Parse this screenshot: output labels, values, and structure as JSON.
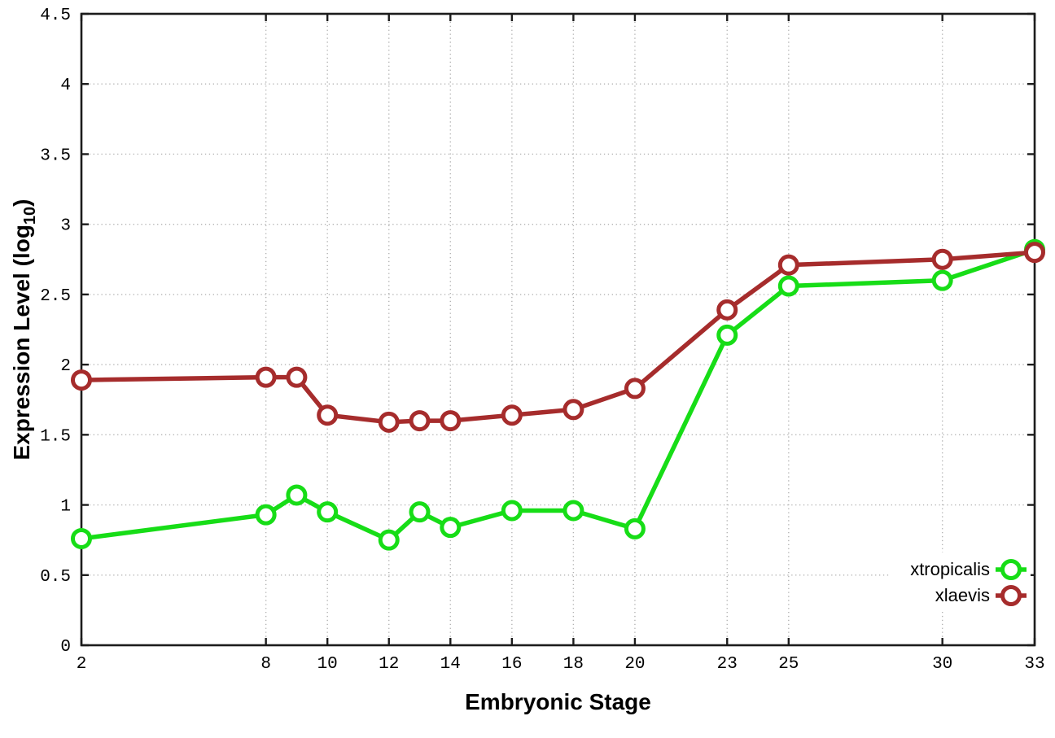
{
  "chart_data": {
    "type": "line",
    "title": "",
    "xlabel": "Embryonic Stage",
    "ylabel": "Expression Level (log10)",
    "ylabel_main": "Expression Level (log",
    "ylabel_sub": "10",
    "ylabel_end": ")",
    "x": [
      2,
      8,
      9,
      10,
      12,
      13,
      14,
      16,
      18,
      20,
      23,
      25,
      30,
      33
    ],
    "series": [
      {
        "name": "xtropicalis",
        "color": "#17dd17",
        "marker": "open-circle",
        "values": [
          0.76,
          0.93,
          1.07,
          0.95,
          0.75,
          0.95,
          0.84,
          0.96,
          0.96,
          0.83,
          2.21,
          2.56,
          2.6,
          2.82
        ]
      },
      {
        "name": "xlaevis",
        "color": "#a62c2c",
        "marker": "open-circle",
        "values": [
          1.89,
          1.91,
          1.91,
          1.64,
          1.59,
          1.6,
          1.6,
          1.64,
          1.68,
          1.83,
          2.39,
          2.71,
          2.75,
          2.8
        ]
      }
    ],
    "xlim": [
      2,
      33
    ],
    "ylim": [
      0,
      4.5
    ],
    "xticks": [
      2,
      8,
      10,
      12,
      14,
      16,
      18,
      20,
      23,
      25,
      30,
      33
    ],
    "xtick_labels": [
      "2",
      "8",
      "10",
      "12",
      "14",
      "16",
      "18",
      "20",
      "23",
      "25",
      "30",
      "33"
    ],
    "yticks": [
      0,
      0.5,
      1,
      1.5,
      2,
      2.5,
      3,
      3.5,
      4,
      4.5
    ],
    "ytick_labels": [
      "0",
      "0.5",
      "1",
      "1.5",
      "2",
      "2.5",
      "3",
      "3.5",
      "4",
      "4.5"
    ],
    "grid": true,
    "legend_position": "inside-bottom-right",
    "legend": [
      "xtropicalis",
      "xlaevis"
    ]
  },
  "colors": {
    "background": "#ffffff",
    "frame": "#1c1c1c",
    "grid": "#b3b3b3",
    "text": "#000000",
    "marker_fill": "#ffffff"
  }
}
